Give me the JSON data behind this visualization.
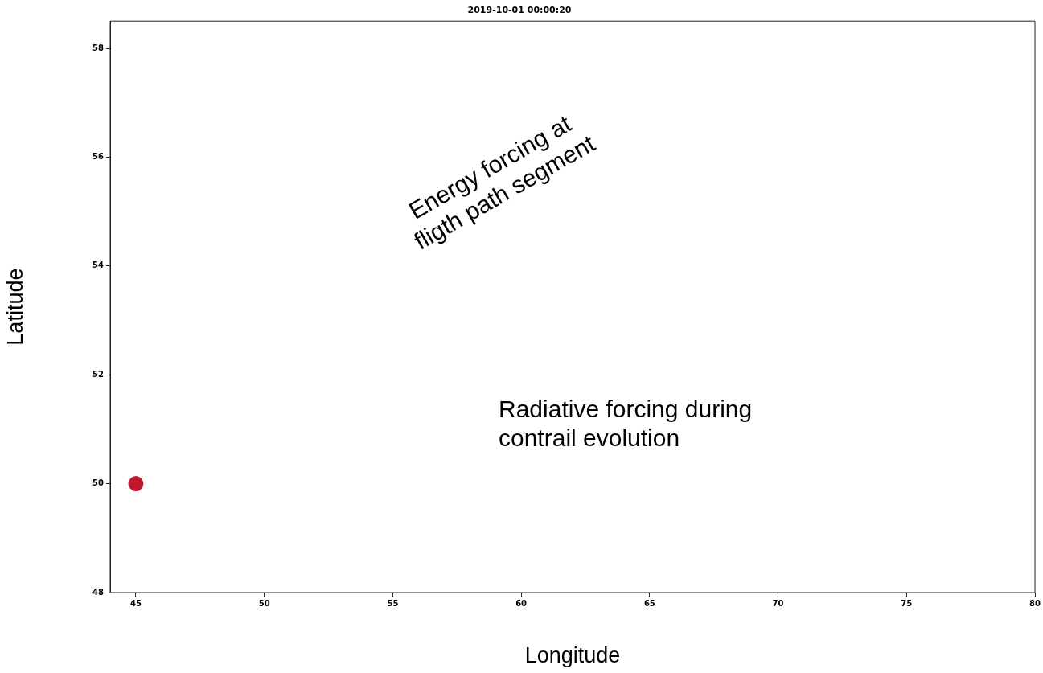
{
  "chart_data": {
    "type": "scatter",
    "title": "2019-10-01 00:00:20",
    "xlabel": "Longitude",
    "ylabel": "Latitude",
    "annotations": [
      "Energy forcing at\nfligth path segment",
      "Radiative forcing during\ncontrail evolution"
    ],
    "x": [
      45
    ],
    "values": [
      50
    ],
    "color": "#c0182f",
    "marker": "circle",
    "xlim": [
      44,
      80
    ],
    "xticks": [
      45,
      50,
      55,
      60,
      65,
      70,
      75,
      80
    ],
    "ylim": [
      48,
      58.5
    ],
    "yticks": [
      48,
      50,
      52,
      54,
      56,
      58
    ],
    "grid": false,
    "legend": false
  }
}
